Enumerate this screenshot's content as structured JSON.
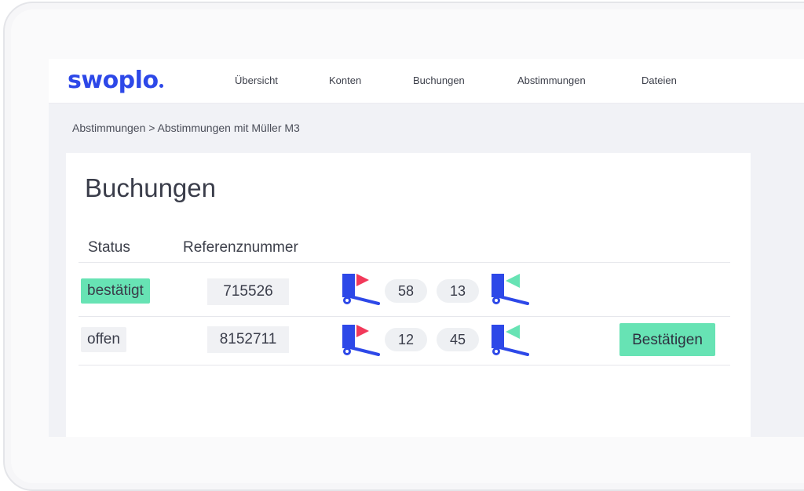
{
  "app": {
    "logo_text": "swoplo"
  },
  "nav": {
    "items": [
      {
        "label": "Übersicht"
      },
      {
        "label": "Konten"
      },
      {
        "label": "Buchungen"
      },
      {
        "label": "Abstimmungen"
      },
      {
        "label": "Dateien"
      }
    ]
  },
  "breadcrumb": {
    "text": "Abstimmungen > Abstimmungen mit Müller M3"
  },
  "main": {
    "title": "Buchungen",
    "columns": {
      "status": "Status",
      "reference": "Referenznummer"
    },
    "rows": [
      {
        "status": "bestätigt",
        "status_type": "confirmed",
        "reference": "715526",
        "left_count": "58",
        "right_count": "13",
        "action": ""
      },
      {
        "status": "offen",
        "status_type": "open",
        "reference": "8152711",
        "left_count": "12",
        "right_count": "45",
        "action": "Bestätigen"
      }
    ]
  },
  "icons": {
    "outgoing": "outgoing-flag-icon",
    "incoming": "incoming-flag-icon"
  },
  "colors": {
    "brand": "#2d48e8",
    "confirmed": "#67e3b4",
    "outgoing_accent": "#f2395a",
    "incoming_accent": "#67e3b4"
  }
}
